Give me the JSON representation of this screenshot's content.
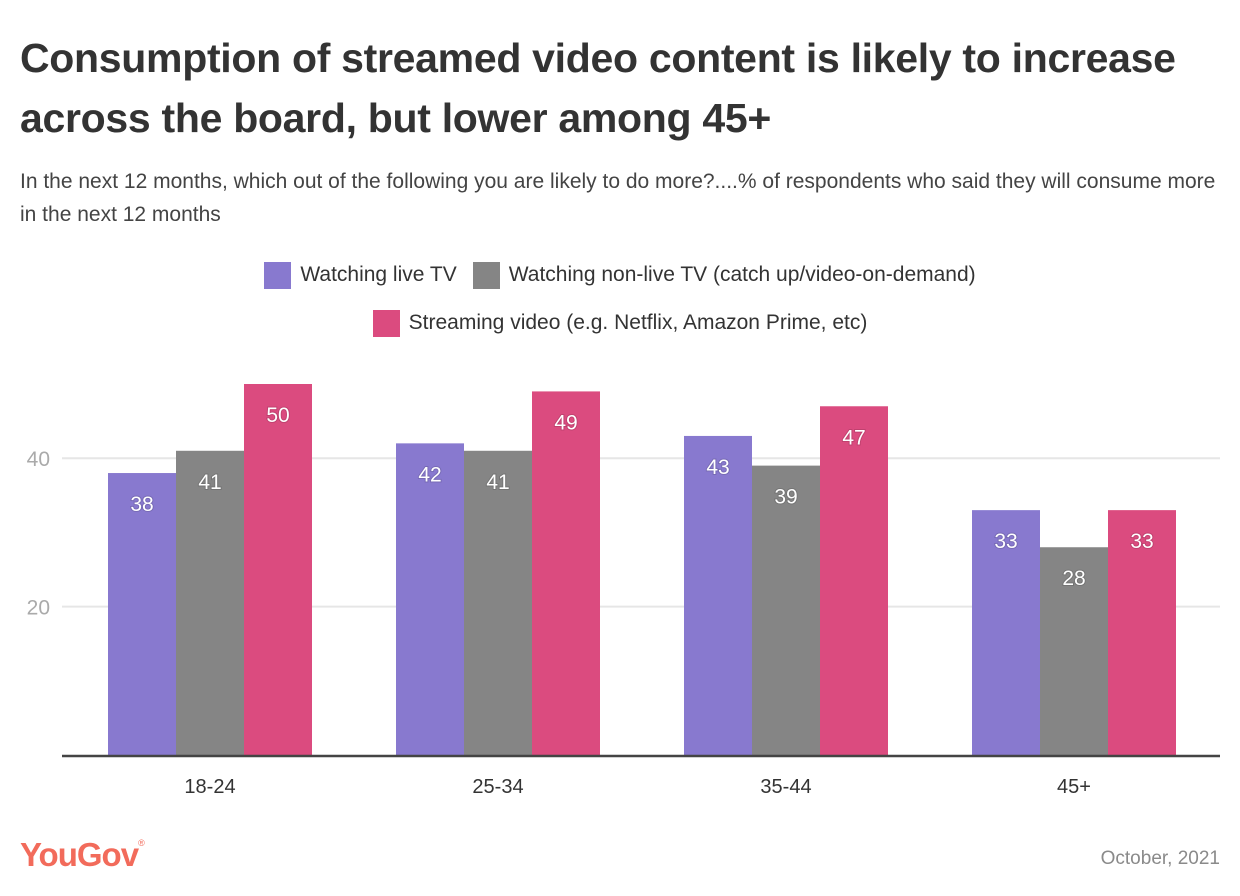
{
  "header": {
    "title": "Consumption of streamed video content is likely to increase across the board, but lower among 45+",
    "subtitle": "In the next 12 months, which out of the following you are likely to do more?....% of respondents who said they will consume more in the next 12 months"
  },
  "footer": {
    "brand": "YouGov",
    "brand_mark": "®",
    "date": "October, 2021"
  },
  "colors": {
    "live_tv": "#8879cf",
    "non_live_tv": "#858585",
    "streaming": "#db4b7f",
    "grid": "#e6e6e6",
    "axis": "#444444",
    "brand": "#f26b5b"
  },
  "chart_data": {
    "type": "bar",
    "title": "Consumption of streamed video content is likely to increase across the board, but lower among 45+",
    "subtitle": "In the next 12 months, which out of the following you are likely to do more?....% of respondents who said they will consume more in the next 12 months",
    "xlabel": "",
    "ylabel": "",
    "categories": [
      "18-24",
      "25-34",
      "35-44",
      "45+"
    ],
    "series": [
      {
        "name": "Watching live TV",
        "color": "#8879cf",
        "values": [
          38,
          42,
          43,
          33
        ]
      },
      {
        "name": "Watching non-live TV (catch up/video-on-demand)",
        "color": "#858585",
        "values": [
          41,
          41,
          39,
          28
        ]
      },
      {
        "name": "Streaming video (e.g. Netflix, Amazon Prime, etc)",
        "color": "#db4b7f",
        "values": [
          50,
          49,
          47,
          33
        ]
      }
    ],
    "yticks": [
      20,
      40
    ],
    "ylim": [
      0,
      50
    ],
    "grid": true,
    "legend_position": "top-center",
    "data_labels": true
  }
}
